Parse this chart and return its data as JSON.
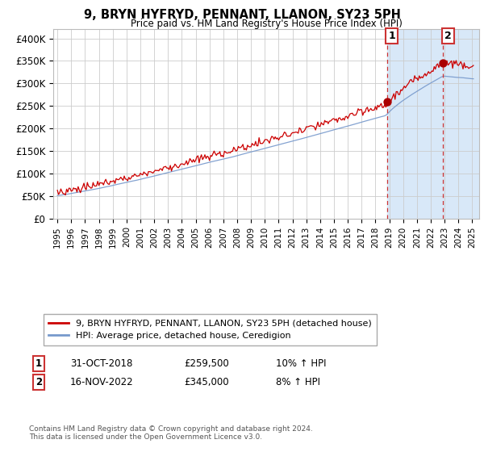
{
  "title": "9, BRYN HYFRYD, PENNANT, LLANON, SY23 5PH",
  "subtitle": "Price paid vs. HM Land Registry's House Price Index (HPI)",
  "ylabel_ticks": [
    "£0",
    "£50K",
    "£100K",
    "£150K",
    "£200K",
    "£250K",
    "£300K",
    "£350K",
    "£400K"
  ],
  "ytick_values": [
    0,
    50000,
    100000,
    150000,
    200000,
    250000,
    300000,
    350000,
    400000
  ],
  "ylim": [
    0,
    420000
  ],
  "xlim_start": 1994.7,
  "xlim_end": 2025.5,
  "sale1_date": 2018.83,
  "sale1_price": 259500,
  "sale1_label": "1",
  "sale2_date": 2022.88,
  "sale2_price": 345000,
  "sale2_label": "2",
  "legend_line1": "9, BRYN HYFRYD, PENNANT, LLANON, SY23 5PH (detached house)",
  "legend_line2": "HPI: Average price, detached house, Ceredigion",
  "footer": "Contains HM Land Registry data © Crown copyright and database right 2024.\nThis data is licensed under the Open Government Licence v3.0.",
  "sale_marker_color": "#aa0000",
  "hpi_line_color": "#7799cc",
  "price_line_color": "#cc0000",
  "background_shade_color": "#d8e8f8",
  "grid_color": "#cccccc",
  "box_color": "#cc3333",
  "table_row1_date": "31-OCT-2018",
  "table_row1_price": "£259,500",
  "table_row1_hpi": "10% ↑ HPI",
  "table_row2_date": "16-NOV-2022",
  "table_row2_price": "£345,000",
  "table_row2_hpi": "8% ↑ HPI"
}
